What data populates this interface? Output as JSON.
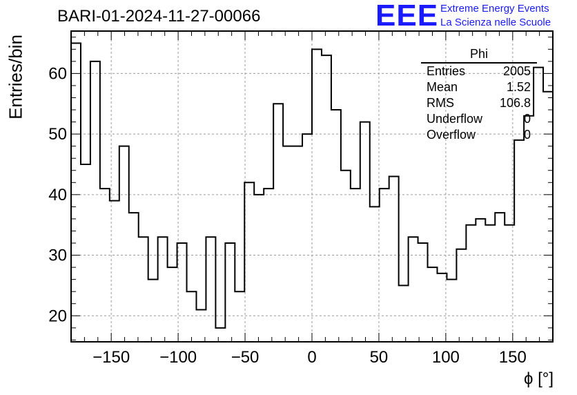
{
  "chart_data": {
    "type": "histogram",
    "title": "BARI-01-2024-11-27-00066",
    "xlabel": "ϕ [°]",
    "ylabel": "Entries/bin",
    "xlim": [
      -180,
      180
    ],
    "ylim": [
      15.7,
      67
    ],
    "bin_width": 7.2,
    "x_ticks": [
      -150,
      -100,
      -50,
      0,
      50,
      100,
      150
    ],
    "x_tick_labels": [
      "−150",
      "−100",
      "−50",
      "0",
      "50",
      "100",
      "150"
    ],
    "y_ticks": [
      20,
      30,
      40,
      50,
      60
    ],
    "y_tick_labels": [
      "20",
      "30",
      "40",
      "50",
      "60"
    ],
    "grid": true,
    "values": [
      65,
      45,
      62,
      41,
      39,
      48,
      37,
      33,
      26,
      33,
      28,
      32,
      24,
      21,
      33,
      18,
      32,
      24,
      42,
      40,
      41,
      55,
      48,
      48,
      50,
      64,
      63,
      54,
      44,
      41,
      52,
      38,
      41,
      43,
      25,
      33,
      32,
      28,
      27,
      26,
      31,
      35,
      36,
      35,
      37,
      35,
      49,
      53,
      61,
      57
    ],
    "stats": {
      "name": "Phi",
      "rows": [
        {
          "label": "Entries",
          "value": "2005"
        },
        {
          "label": "Mean",
          "value": "1.52"
        },
        {
          "label": "RMS",
          "value": "106.8"
        },
        {
          "label": "Underflow",
          "value": "0"
        },
        {
          "label": "Overflow",
          "value": "0"
        }
      ]
    }
  },
  "logo": {
    "mark": "EEE",
    "line1": "Extreme Energy Events",
    "line2": "La Scienza nelle Scuole"
  },
  "colors": {
    "line": "#000000",
    "grid": "#9a9a9a",
    "logo": "#1a1aff"
  }
}
